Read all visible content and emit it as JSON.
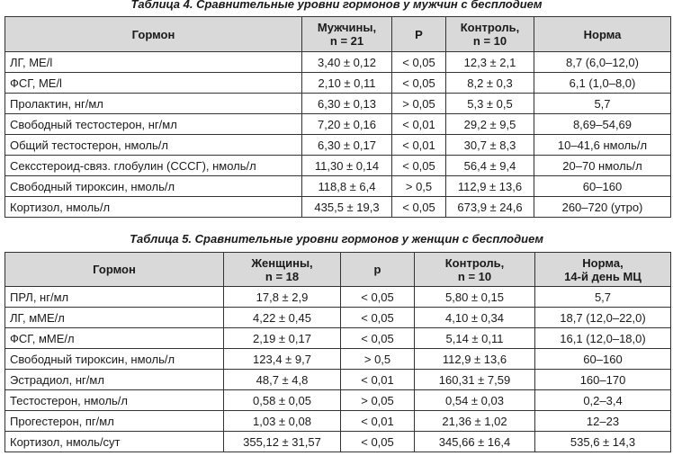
{
  "table_4": {
    "title": "Таблица 4. Сравнительные уровни гормонов у мужчин с бесплодием",
    "widths": [
      330,
      100,
      60,
      98,
      152
    ],
    "header": [
      "Гормон",
      "Мужчины,\nn = 21",
      "P",
      "Контроль,\nn = 10",
      "Норма"
    ],
    "rows": [
      [
        "ЛГ, МЕ/l",
        "3,40 ± 0,12",
        "< 0,05",
        "12,3 ± 2,1",
        "8,7 (6,0–12,0)"
      ],
      [
        "ФСГ, МЕ/l",
        "2,10 ± 0,11",
        "< 0,05",
        "8,2 ± 0,3",
        "6,1 (1,0–8,0)"
      ],
      [
        "Пролактин, нг/мл",
        "6,30 ± 0,13",
        "> 0,05",
        "5,3 ± 0,5",
        "5,7"
      ],
      [
        "Свободный тестостерон, нг/мл",
        "7,20 ± 0,16",
        "< 0,01",
        "29,2 ± 9,5",
        "8,69–54,69"
      ],
      [
        "Общий тестостерон, нмоль/л",
        "6,30 ± 0,17",
        "< 0,01",
        "30,7 ± 8,3",
        "10–41,6 нмоль/л"
      ],
      [
        "Сексстероид-связ. глобулин (СССГ), нмоль/л",
        "11,30 ± 0,14",
        "< 0,05",
        "56,4 ± 9,4",
        "20–70 нмоль/л"
      ],
      [
        "Свободный тироксин, нмоль/л",
        "118,8 ± 6,4",
        "> 0,5",
        "112,9 ± 13,6",
        "60–160"
      ],
      [
        "Кортизол, нмоль/л",
        "435,5 ± 19,3",
        "< 0,05",
        "673,9 ± 24,6",
        "260–720 (утро)"
      ]
    ]
  },
  "table_5": {
    "title": "Таблица 5. Сравнительные уровни гормонов у женщин с бесплодием",
    "widths": [
      243,
      130,
      82,
      134,
      151
    ],
    "header": [
      "Гормон",
      "Женщины,\nn = 18",
      "p",
      "Контроль,\nn = 10",
      "Норма,\n14-й день МЦ"
    ],
    "rows": [
      [
        "ПРЛ, нг/мл",
        "17,8 ± 2,9",
        "< 0,05",
        "5,80 ± 0,15",
        "5,7"
      ],
      [
        "ЛГ, мМЕ/л",
        "4,22 ± 0,45",
        "< 0,05",
        "4,10 ± 0,34",
        "18,7 (12,0–22,0)"
      ],
      [
        "ФСГ, мМЕ/л",
        "2,19 ± 0,17",
        "< 0,05",
        "5,14 ± 0,11",
        "16,1 (12,0–18,0)"
      ],
      [
        "Свободный тироксин, нмоль/л",
        "123,4 ± 9,7",
        "> 0,5",
        "112,9 ± 13,6",
        "60–160"
      ],
      [
        "Эстрадиол, нг/мл",
        "48,7 ± 4,8",
        "< 0,01",
        "160,31 ± 7,59",
        "160–170"
      ],
      [
        "Тестостерон, нмоль/л",
        "0,58 ± 0,05",
        "> 0,05",
        "0,54 ± 0,03",
        "0,2–3,4"
      ],
      [
        "Прогестерон, пг/мл",
        "1,03 ± 0,08",
        "< 0,01",
        "21,36 ± 1,02",
        "12–23"
      ],
      [
        "Кортизол, нмоль/сут",
        "355,12 ± 31,57",
        "< 0,05",
        "345,66 ± 16,4",
        "535,6 ± 14,3"
      ]
    ]
  }
}
